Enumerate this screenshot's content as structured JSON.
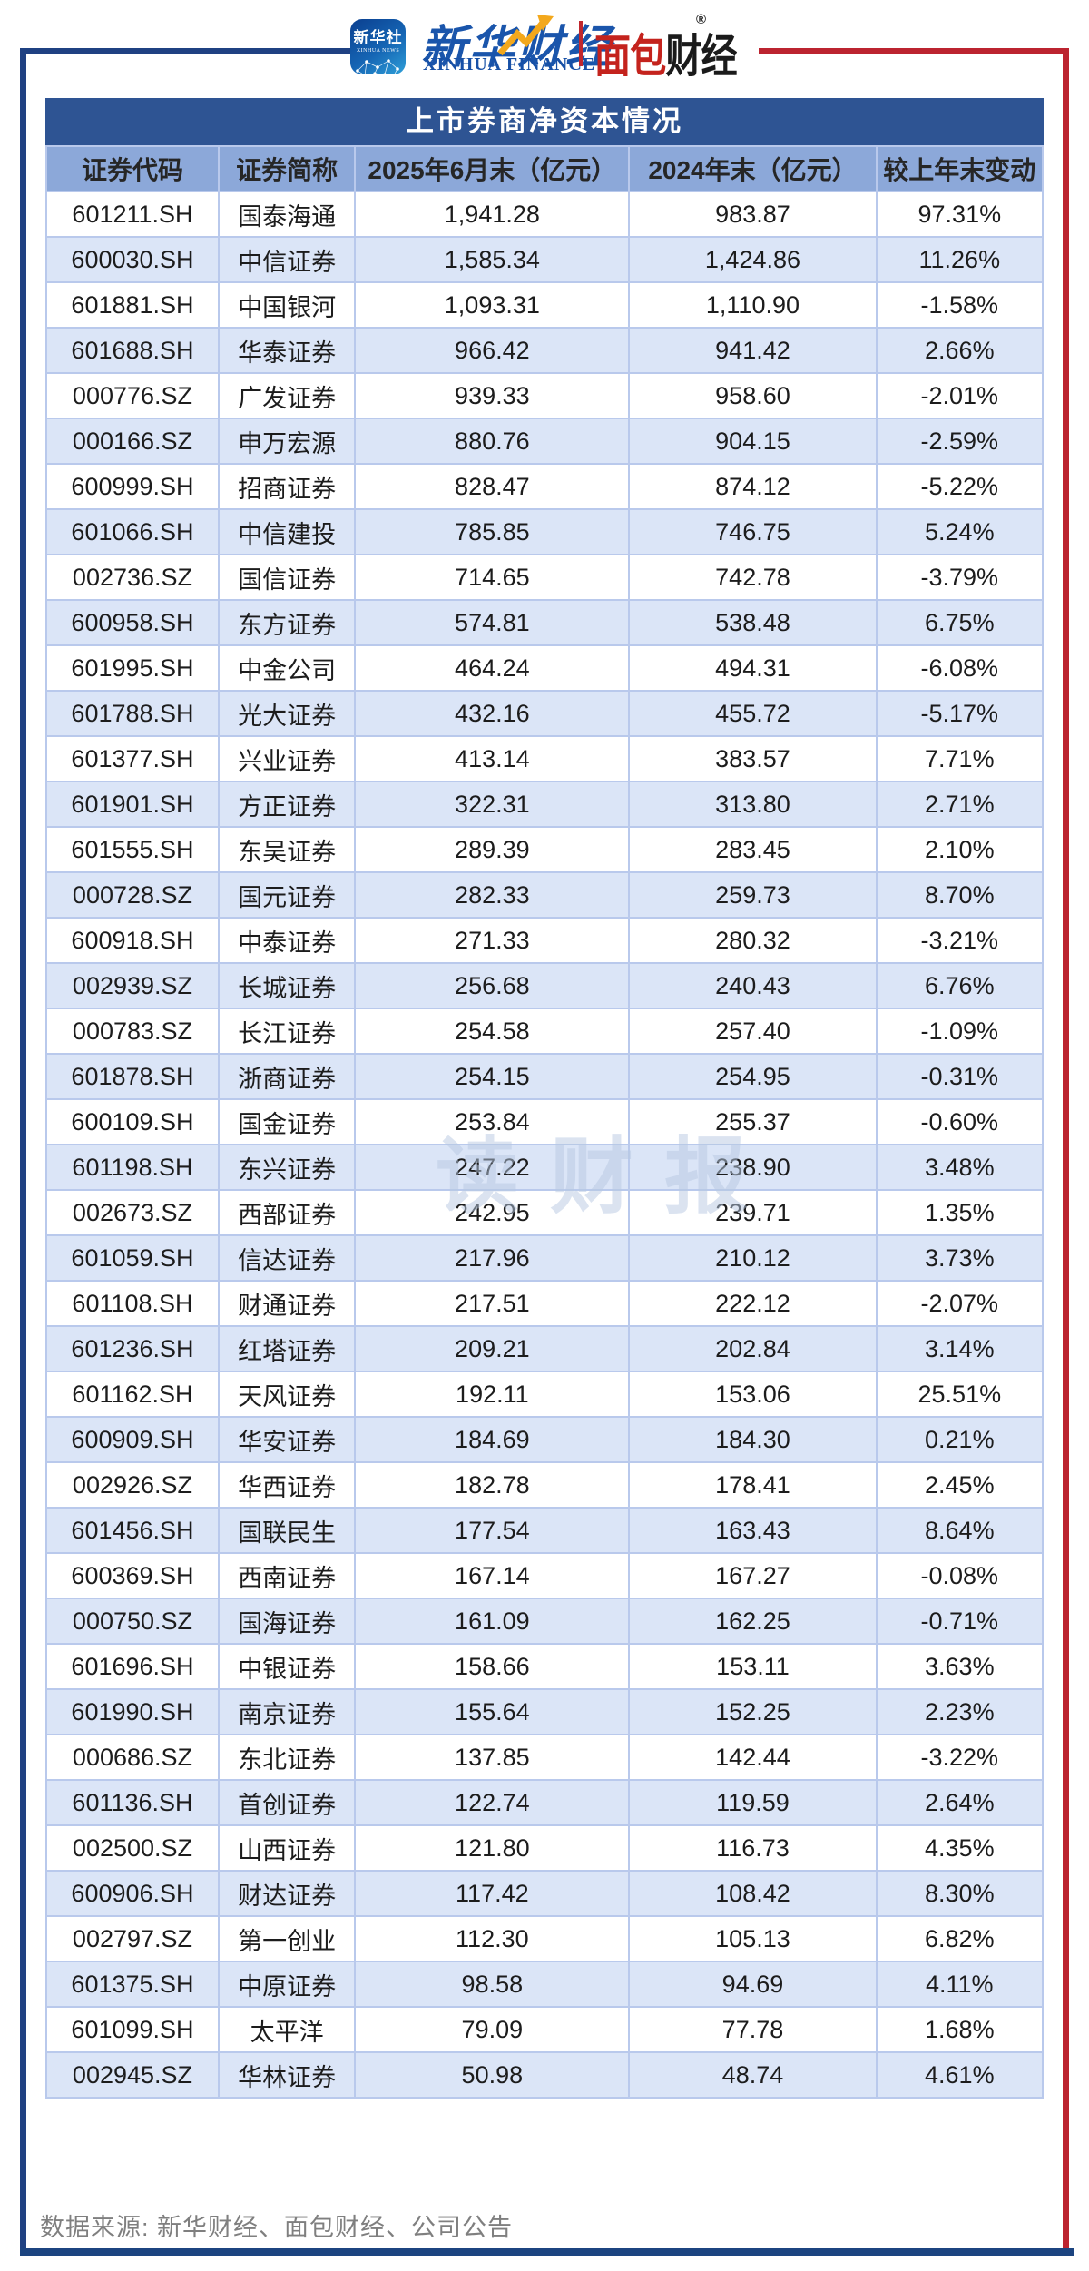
{
  "brand": {
    "icon_title": "新华社",
    "icon_subtitle": "XINHUA NEWS",
    "wordmark_cn": "新华财经",
    "wordmark_en": "XINHUA FINANCE",
    "partner_cn_red": "面包",
    "partner_cn_black": "财经",
    "registered_mark": "®"
  },
  "table": {
    "title": "上市券商净资本情况",
    "columns": [
      "证券代码",
      "证券简称",
      "2025年6月末（亿元）",
      "2024年末（亿元）",
      "较上年末变动"
    ],
    "rows": [
      {
        "code": "601211.SH",
        "name": "国泰海通",
        "jun2025": "1,941.28",
        "end2024": "983.87",
        "change": "97.31%"
      },
      {
        "code": "600030.SH",
        "name": "中信证券",
        "jun2025": "1,585.34",
        "end2024": "1,424.86",
        "change": "11.26%"
      },
      {
        "code": "601881.SH",
        "name": "中国银河",
        "jun2025": "1,093.31",
        "end2024": "1,110.90",
        "change": "-1.58%"
      },
      {
        "code": "601688.SH",
        "name": "华泰证券",
        "jun2025": "966.42",
        "end2024": "941.42",
        "change": "2.66%"
      },
      {
        "code": "000776.SZ",
        "name": "广发证券",
        "jun2025": "939.33",
        "end2024": "958.60",
        "change": "-2.01%"
      },
      {
        "code": "000166.SZ",
        "name": "申万宏源",
        "jun2025": "880.76",
        "end2024": "904.15",
        "change": "-2.59%"
      },
      {
        "code": "600999.SH",
        "name": "招商证券",
        "jun2025": "828.47",
        "end2024": "874.12",
        "change": "-5.22%"
      },
      {
        "code": "601066.SH",
        "name": "中信建投",
        "jun2025": "785.85",
        "end2024": "746.75",
        "change": "5.24%"
      },
      {
        "code": "002736.SZ",
        "name": "国信证券",
        "jun2025": "714.65",
        "end2024": "742.78",
        "change": "-3.79%"
      },
      {
        "code": "600958.SH",
        "name": "东方证券",
        "jun2025": "574.81",
        "end2024": "538.48",
        "change": "6.75%"
      },
      {
        "code": "601995.SH",
        "name": "中金公司",
        "jun2025": "464.24",
        "end2024": "494.31",
        "change": "-6.08%"
      },
      {
        "code": "601788.SH",
        "name": "光大证券",
        "jun2025": "432.16",
        "end2024": "455.72",
        "change": "-5.17%"
      },
      {
        "code": "601377.SH",
        "name": "兴业证券",
        "jun2025": "413.14",
        "end2024": "383.57",
        "change": "7.71%"
      },
      {
        "code": "601901.SH",
        "name": "方正证券",
        "jun2025": "322.31",
        "end2024": "313.80",
        "change": "2.71%"
      },
      {
        "code": "601555.SH",
        "name": "东吴证券",
        "jun2025": "289.39",
        "end2024": "283.45",
        "change": "2.10%"
      },
      {
        "code": "000728.SZ",
        "name": "国元证券",
        "jun2025": "282.33",
        "end2024": "259.73",
        "change": "8.70%"
      },
      {
        "code": "600918.SH",
        "name": "中泰证券",
        "jun2025": "271.33",
        "end2024": "280.32",
        "change": "-3.21%"
      },
      {
        "code": "002939.SZ",
        "name": "长城证券",
        "jun2025": "256.68",
        "end2024": "240.43",
        "change": "6.76%"
      },
      {
        "code": "000783.SZ",
        "name": "长江证券",
        "jun2025": "254.58",
        "end2024": "257.40",
        "change": "-1.09%"
      },
      {
        "code": "601878.SH",
        "name": "浙商证券",
        "jun2025": "254.15",
        "end2024": "254.95",
        "change": "-0.31%"
      },
      {
        "code": "600109.SH",
        "name": "国金证券",
        "jun2025": "253.84",
        "end2024": "255.37",
        "change": "-0.60%"
      },
      {
        "code": "601198.SH",
        "name": "东兴证券",
        "jun2025": "247.22",
        "end2024": "238.90",
        "change": "3.48%"
      },
      {
        "code": "002673.SZ",
        "name": "西部证券",
        "jun2025": "242.95",
        "end2024": "239.71",
        "change": "1.35%"
      },
      {
        "code": "601059.SH",
        "name": "信达证券",
        "jun2025": "217.96",
        "end2024": "210.12",
        "change": "3.73%"
      },
      {
        "code": "601108.SH",
        "name": "财通证券",
        "jun2025": "217.51",
        "end2024": "222.12",
        "change": "-2.07%"
      },
      {
        "code": "601236.SH",
        "name": "红塔证券",
        "jun2025": "209.21",
        "end2024": "202.84",
        "change": "3.14%"
      },
      {
        "code": "601162.SH",
        "name": "天风证券",
        "jun2025": "192.11",
        "end2024": "153.06",
        "change": "25.51%"
      },
      {
        "code": "600909.SH",
        "name": "华安证券",
        "jun2025": "184.69",
        "end2024": "184.30",
        "change": "0.21%"
      },
      {
        "code": "002926.SZ",
        "name": "华西证券",
        "jun2025": "182.78",
        "end2024": "178.41",
        "change": "2.45%"
      },
      {
        "code": "601456.SH",
        "name": "国联民生",
        "jun2025": "177.54",
        "end2024": "163.43",
        "change": "8.64%"
      },
      {
        "code": "600369.SH",
        "name": "西南证券",
        "jun2025": "167.14",
        "end2024": "167.27",
        "change": "-0.08%"
      },
      {
        "code": "000750.SZ",
        "name": "国海证券",
        "jun2025": "161.09",
        "end2024": "162.25",
        "change": "-0.71%"
      },
      {
        "code": "601696.SH",
        "name": "中银证券",
        "jun2025": "158.66",
        "end2024": "153.11",
        "change": "3.63%"
      },
      {
        "code": "601990.SH",
        "name": "南京证券",
        "jun2025": "155.64",
        "end2024": "152.25",
        "change": "2.23%"
      },
      {
        "code": "000686.SZ",
        "name": "东北证券",
        "jun2025": "137.85",
        "end2024": "142.44",
        "change": "-3.22%"
      },
      {
        "code": "601136.SH",
        "name": "首创证券",
        "jun2025": "122.74",
        "end2024": "119.59",
        "change": "2.64%"
      },
      {
        "code": "002500.SZ",
        "name": "山西证券",
        "jun2025": "121.80",
        "end2024": "116.73",
        "change": "4.35%"
      },
      {
        "code": "600906.SH",
        "name": "财达证券",
        "jun2025": "117.42",
        "end2024": "108.42",
        "change": "8.30%"
      },
      {
        "code": "002797.SZ",
        "name": "第一创业",
        "jun2025": "112.30",
        "end2024": "105.13",
        "change": "6.82%"
      },
      {
        "code": "601375.SH",
        "name": "中原证券",
        "jun2025": "98.58",
        "end2024": "94.69",
        "change": "4.11%"
      },
      {
        "code": "601099.SH",
        "name": "太平洋",
        "jun2025": "79.09",
        "end2024": "77.78",
        "change": "1.68%"
      },
      {
        "code": "002945.SZ",
        "name": "华林证券",
        "jun2025": "50.98",
        "end2024": "48.74",
        "change": "4.61%"
      }
    ]
  },
  "chart_data": {
    "type": "table",
    "title": "上市券商净资本情况",
    "columns": [
      "证券代码",
      "证券简称",
      "2025年6月末（亿元）",
      "2024年末（亿元）",
      "较上年末变动"
    ],
    "rows": [
      [
        "601211.SH",
        "国泰海通",
        1941.28,
        983.87,
        "97.31%"
      ],
      [
        "600030.SH",
        "中信证券",
        1585.34,
        1424.86,
        "11.26%"
      ],
      [
        "601881.SH",
        "中国银河",
        1093.31,
        1110.9,
        "-1.58%"
      ],
      [
        "601688.SH",
        "华泰证券",
        966.42,
        941.42,
        "2.66%"
      ],
      [
        "000776.SZ",
        "广发证券",
        939.33,
        958.6,
        "-2.01%"
      ],
      [
        "000166.SZ",
        "申万宏源",
        880.76,
        904.15,
        "-2.59%"
      ],
      [
        "600999.SH",
        "招商证券",
        828.47,
        874.12,
        "-5.22%"
      ],
      [
        "601066.SH",
        "中信建投",
        785.85,
        746.75,
        "5.24%"
      ],
      [
        "002736.SZ",
        "国信证券",
        714.65,
        742.78,
        "-3.79%"
      ],
      [
        "600958.SH",
        "东方证券",
        574.81,
        538.48,
        "6.75%"
      ],
      [
        "601995.SH",
        "中金公司",
        464.24,
        494.31,
        "-6.08%"
      ],
      [
        "601788.SH",
        "光大证券",
        432.16,
        455.72,
        "-5.17%"
      ],
      [
        "601377.SH",
        "兴业证券",
        413.14,
        383.57,
        "7.71%"
      ],
      [
        "601901.SH",
        "方正证券",
        322.31,
        313.8,
        "2.71%"
      ],
      [
        "601555.SH",
        "东吴证券",
        289.39,
        283.45,
        "2.10%"
      ],
      [
        "000728.SZ",
        "国元证券",
        282.33,
        259.73,
        "8.70%"
      ],
      [
        "600918.SH",
        "中泰证券",
        271.33,
        280.32,
        "-3.21%"
      ],
      [
        "002939.SZ",
        "长城证券",
        256.68,
        240.43,
        "6.76%"
      ],
      [
        "000783.SZ",
        "长江证券",
        254.58,
        257.4,
        "-1.09%"
      ],
      [
        "601878.SH",
        "浙商证券",
        254.15,
        254.95,
        "-0.31%"
      ],
      [
        "600109.SH",
        "国金证券",
        253.84,
        255.37,
        "-0.60%"
      ],
      [
        "601198.SH",
        "东兴证券",
        247.22,
        238.9,
        "3.48%"
      ],
      [
        "002673.SZ",
        "西部证券",
        242.95,
        239.71,
        "1.35%"
      ],
      [
        "601059.SH",
        "信达证券",
        217.96,
        210.12,
        "3.73%"
      ],
      [
        "601108.SH",
        "财通证券",
        217.51,
        222.12,
        "-2.07%"
      ],
      [
        "601236.SH",
        "红塔证券",
        209.21,
        202.84,
        "3.14%"
      ],
      [
        "601162.SH",
        "天风证券",
        192.11,
        153.06,
        "25.51%"
      ],
      [
        "600909.SH",
        "华安证券",
        184.69,
        184.3,
        "0.21%"
      ],
      [
        "002926.SZ",
        "华西证券",
        182.78,
        178.41,
        "2.45%"
      ],
      [
        "601456.SH",
        "国联民生",
        177.54,
        163.43,
        "8.64%"
      ],
      [
        "600369.SH",
        "西南证券",
        167.14,
        167.27,
        "-0.08%"
      ],
      [
        "000750.SZ",
        "国海证券",
        161.09,
        162.25,
        "-0.71%"
      ],
      [
        "601696.SH",
        "中银证券",
        158.66,
        153.11,
        "3.63%"
      ],
      [
        "601990.SH",
        "南京证券",
        155.64,
        152.25,
        "2.23%"
      ],
      [
        "000686.SZ",
        "东北证券",
        137.85,
        142.44,
        "-3.22%"
      ],
      [
        "601136.SH",
        "首创证券",
        122.74,
        119.59,
        "2.64%"
      ],
      [
        "002500.SZ",
        "山西证券",
        121.8,
        116.73,
        "4.35%"
      ],
      [
        "600906.SH",
        "财达证券",
        117.42,
        108.42,
        "8.30%"
      ],
      [
        "002797.SZ",
        "第一创业",
        112.3,
        105.13,
        "6.82%"
      ],
      [
        "601375.SH",
        "中原证券",
        98.58,
        94.69,
        "4.11%"
      ],
      [
        "601099.SH",
        "太平洋",
        79.09,
        77.78,
        "1.68%"
      ],
      [
        "002945.SZ",
        "华林证券",
        50.98,
        48.74,
        "4.61%"
      ]
    ]
  },
  "watermark": "读财报",
  "footer": {
    "source": "数据来源: 新华财经、面包财经、公司公告"
  },
  "colors": {
    "frame_navy": "#1f4182",
    "frame_red": "#bc2430",
    "title_bar": "#2e5493",
    "header_row": "#8ca8d9",
    "even_row": "#dbe5f7",
    "cell_border": "#b9c9ec",
    "footer_text": "#7f7f7f"
  }
}
